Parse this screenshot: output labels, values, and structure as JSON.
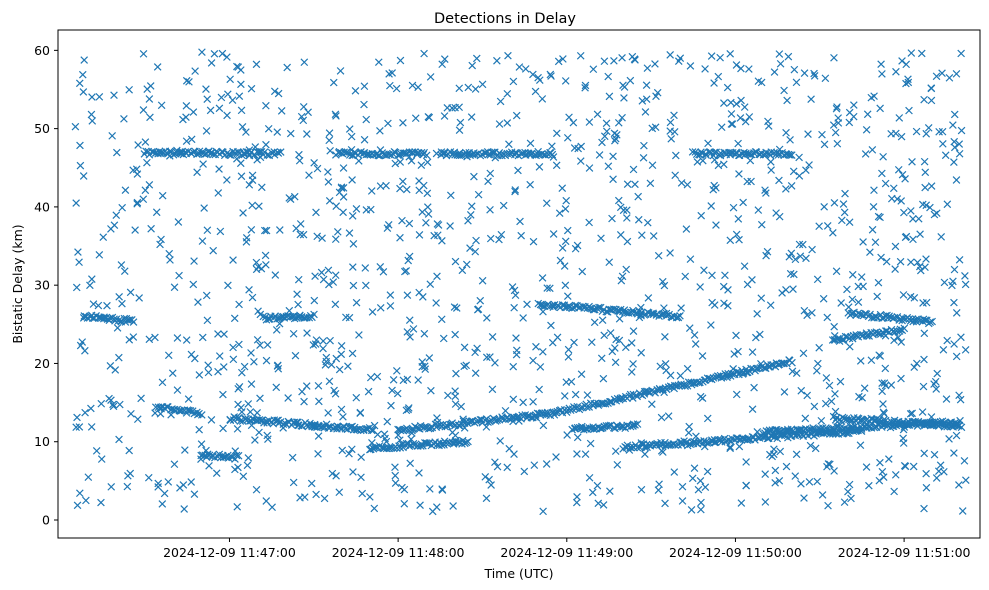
{
  "chart_data": {
    "type": "scatter",
    "title": "Detections in Delay",
    "xlabel": "Time (UTC)",
    "ylabel": "Bistatic Delay (km)",
    "x_axis": {
      "type": "time",
      "range": [
        "2024-12-09T11:45:59",
        "2024-12-09T11:51:27"
      ],
      "ticks": [
        "2024-12-09 11:47:00",
        "2024-12-09 11:48:00",
        "2024-12-09 11:49:00",
        "2024-12-09 11:50:00",
        "2024-12-09 11:51:00"
      ]
    },
    "y_axis": {
      "range": [
        -2.3,
        62.6
      ],
      "ticks": [
        0,
        10,
        20,
        30,
        40,
        50,
        60
      ]
    },
    "grid": false,
    "marker": "x",
    "color": "#1f77b4",
    "series": [
      {
        "tracks": [
          {
            "t_start": "2024-12-09T11:46:08",
            "t_end": "2024-12-09T11:46:26",
            "y_start": 26.0,
            "y_end": 25.4
          },
          {
            "t_start": "2024-12-09T11:46:34",
            "t_end": "2024-12-09T11:46:50",
            "y_start": 14.5,
            "y_end": 13.6
          },
          {
            "t_start": "2024-12-09T11:46:50",
            "t_end": "2024-12-09T11:47:03",
            "y_start": 8.3,
            "y_end": 8.0
          },
          {
            "t_start": "2024-12-09T11:46:30",
            "t_end": "2024-12-09T11:47:18",
            "y_start": 46.9,
            "y_end": 46.8
          },
          {
            "t_start": "2024-12-09T11:47:00",
            "t_end": "2024-12-09T11:47:51",
            "y_start": 13.0,
            "y_end": 11.5
          },
          {
            "t_start": "2024-12-09T11:47:12",
            "t_end": "2024-12-09T11:47:30",
            "y_start": 25.8,
            "y_end": 26.1
          },
          {
            "t_start": "2024-12-09T11:47:38",
            "t_end": "2024-12-09T11:48:10",
            "y_start": 46.8,
            "y_end": 46.8
          },
          {
            "t_start": "2024-12-09T11:48:15",
            "t_end": "2024-12-09T11:48:55",
            "y_start": 46.8,
            "y_end": 46.8
          },
          {
            "t_start": "2024-12-09T11:47:50",
            "t_end": "2024-12-09T11:48:25",
            "y_start": 9.2,
            "y_end": 10.0
          },
          {
            "t_start": "2024-12-09T11:48:00",
            "t_end": "2024-12-09T11:48:55",
            "y_start": 11.5,
            "y_end": 13.6
          },
          {
            "t_start": "2024-12-09T11:48:55",
            "t_end": "2024-12-09T11:50:20",
            "y_start": 13.6,
            "y_end": 20.3
          },
          {
            "t_start": "2024-12-09T11:48:50",
            "t_end": "2024-12-09T11:49:40",
            "y_start": 27.6,
            "y_end": 26.0
          },
          {
            "t_start": "2024-12-09T11:49:02",
            "t_end": "2024-12-09T11:49:25",
            "y_start": 11.7,
            "y_end": 12.0
          },
          {
            "t_start": "2024-12-09T11:49:20",
            "t_end": "2024-12-09T11:50:45",
            "y_start": 9.3,
            "y_end": 11.4
          },
          {
            "t_start": "2024-12-09T11:50:10",
            "t_end": "2024-12-09T11:51:20",
            "y_start": 11.2,
            "y_end": 12.5
          },
          {
            "t_start": "2024-12-09T11:50:35",
            "t_end": "2024-12-09T11:51:20",
            "y_start": 13.0,
            "y_end": 12.0
          },
          {
            "t_start": "2024-12-09T11:50:35",
            "t_end": "2024-12-09T11:51:00",
            "y_start": 23.0,
            "y_end": 24.4
          },
          {
            "t_start": "2024-12-09T11:50:40",
            "t_end": "2024-12-09T11:51:10",
            "y_start": 26.4,
            "y_end": 25.3
          },
          {
            "t_start": "2024-12-09T11:49:45",
            "t_end": "2024-12-09T11:50:20",
            "y_start": 46.8,
            "y_end": 46.8
          }
        ]
      }
    ]
  }
}
